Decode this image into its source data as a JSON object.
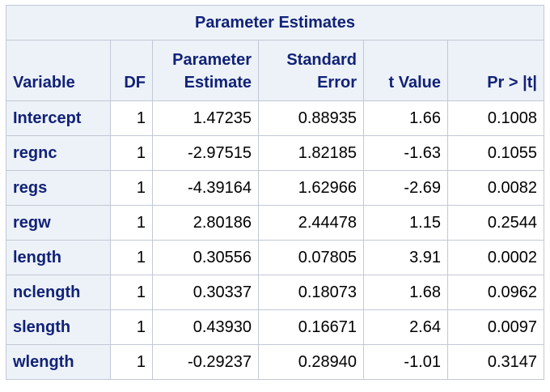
{
  "table": {
    "title": "Parameter Estimates",
    "headers": {
      "variable": "Variable",
      "df": "DF",
      "estimate_line1": "Parameter",
      "estimate_line2": "Estimate",
      "se_line1": "Standard",
      "se_line2": "Error",
      "t_value": "t Value",
      "p_value": "Pr > |t|"
    },
    "rows": [
      {
        "variable": "Intercept",
        "df": "1",
        "estimate": "1.47235",
        "se": "0.88935",
        "t": "1.66",
        "p": "0.1008"
      },
      {
        "variable": "regnc",
        "df": "1",
        "estimate": "-2.97515",
        "se": "1.82185",
        "t": "-1.63",
        "p": "0.1055"
      },
      {
        "variable": "regs",
        "df": "1",
        "estimate": "-4.39164",
        "se": "1.62966",
        "t": "-2.69",
        "p": "0.0082"
      },
      {
        "variable": "regw",
        "df": "1",
        "estimate": "2.80186",
        "se": "2.44478",
        "t": "1.15",
        "p": "0.2544"
      },
      {
        "variable": "length",
        "df": "1",
        "estimate": "0.30556",
        "se": "0.07805",
        "t": "3.91",
        "p": "0.0002"
      },
      {
        "variable": "nclength",
        "df": "1",
        "estimate": "0.30337",
        "se": "0.18073",
        "t": "1.68",
        "p": "0.0962"
      },
      {
        "variable": "slength",
        "df": "1",
        "estimate": "0.43930",
        "se": "0.16671",
        "t": "2.64",
        "p": "0.0097"
      },
      {
        "variable": "wlength",
        "df": "1",
        "estimate": "-0.29237",
        "se": "0.28940",
        "t": "-1.01",
        "p": "0.3147"
      }
    ]
  },
  "colors": {
    "header_background": "#edf2f9",
    "header_text": "#112277",
    "border": "#c2c8d4",
    "cell_text": "#000000"
  }
}
